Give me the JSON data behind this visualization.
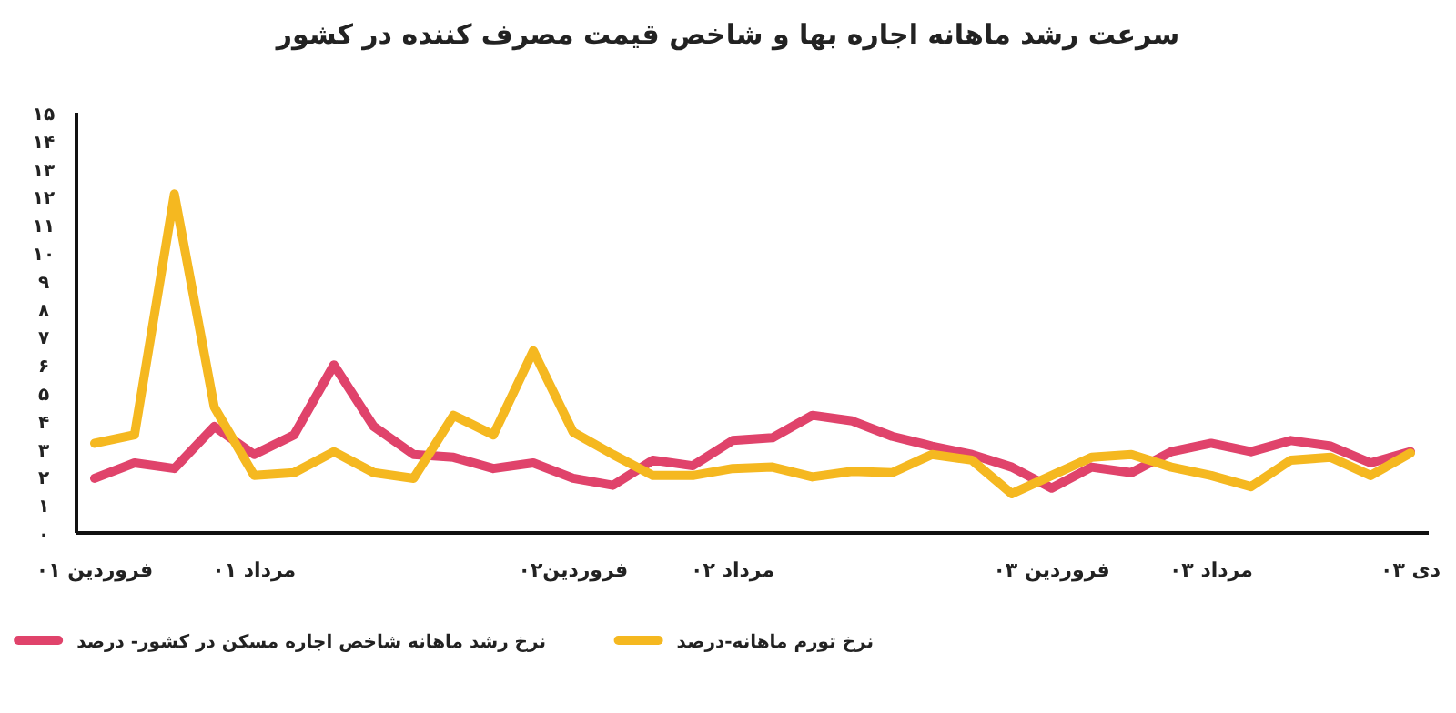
{
  "chart_data": {
    "type": "line",
    "title": "سرعت رشد ماهانه اجاره بها و شاخص قیمت مصرف کننده در کشور",
    "categories": [
      "فروردین ۰۱",
      null,
      null,
      null,
      "مرداد ۰۱",
      null,
      null,
      null,
      null,
      null,
      null,
      null,
      "فروردین۰۲",
      null,
      null,
      null,
      "مرداد ۰۲",
      null,
      null,
      null,
      null,
      null,
      null,
      null,
      "فروردین ۰۳",
      null,
      null,
      null,
      "مرداد ۰۳",
      null,
      null,
      null,
      null,
      "دی ۰۳"
    ],
    "series": [
      {
        "name": "نرخ رشد ماهانه شاخص اجاره مسکن در کشور- درصد",
        "color": "#e0436b",
        "values": [
          1.95,
          2.5,
          2.3,
          3.8,
          2.8,
          3.5,
          6.0,
          3.8,
          2.8,
          2.7,
          2.3,
          2.5,
          1.95,
          1.7,
          2.6,
          2.4,
          3.3,
          3.4,
          4.2,
          4.0,
          3.45,
          3.1,
          2.8,
          2.35,
          1.6,
          2.35,
          2.15,
          2.9,
          3.2,
          2.9,
          3.3,
          3.1,
          2.5,
          2.9
        ]
      },
      {
        "name": "نرخ تورم ماهانه-درصد",
        "color": "#f5b820",
        "values": [
          3.2,
          3.5,
          12.1,
          4.5,
          2.05,
          2.15,
          2.9,
          2.15,
          1.95,
          4.2,
          3.5,
          6.5,
          3.6,
          2.8,
          2.05,
          2.05,
          2.3,
          2.35,
          2.0,
          2.2,
          2.15,
          2.8,
          2.6,
          1.4,
          2.05,
          2.7,
          2.8,
          2.35,
          2.05,
          1.65,
          2.6,
          2.7,
          2.05,
          2.85
        ]
      }
    ],
    "ylim": [
      0,
      15
    ],
    "yticks": [
      {
        "value": 0,
        "label": "۰"
      },
      {
        "value": 1,
        "label": "۱"
      },
      {
        "value": 2,
        "label": "۲"
      },
      {
        "value": 3,
        "label": "۳"
      },
      {
        "value": 4,
        "label": "۴"
      },
      {
        "value": 5,
        "label": "۵"
      },
      {
        "value": 6,
        "label": "۶"
      },
      {
        "value": 7,
        "label": "۷"
      },
      {
        "value": 8,
        "label": "۸"
      },
      {
        "value": 9,
        "label": "۹"
      },
      {
        "value": 10,
        "label": "۱۰"
      },
      {
        "value": 11,
        "label": "۱۱"
      },
      {
        "value": 12,
        "label": "۱۲"
      },
      {
        "value": 13,
        "label": "۱۳"
      },
      {
        "value": 14,
        "label": "۱۴"
      },
      {
        "value": 15,
        "label": "۱۵"
      }
    ],
    "legend": "bottom"
  }
}
